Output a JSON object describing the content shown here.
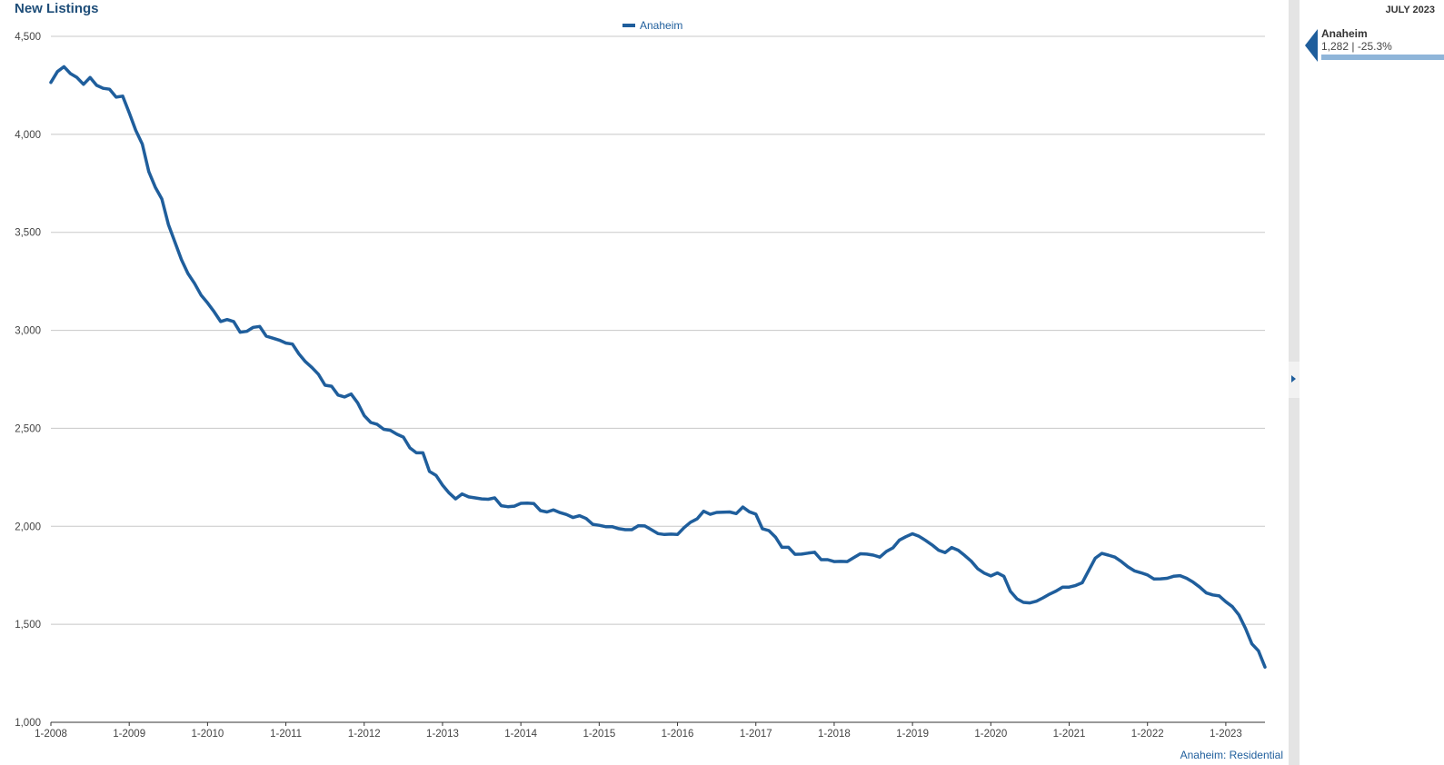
{
  "title": "New Listings",
  "source_label": "Anaheim: Residential",
  "side_panel": {
    "period": "JULY 2023",
    "item_name": "Anaheim",
    "item_values": "1,282 | -25.3%",
    "bar_fraction": 1.0
  },
  "colors": {
    "series": "#1f5e9c",
    "bar": "#8fb5d9",
    "title": "#1f4e79"
  },
  "chart_data": {
    "type": "line",
    "title": "New Listings",
    "ylim": [
      1000,
      4500
    ],
    "grid": true,
    "legend_position": "top-center",
    "y_ticks": [
      1000,
      1500,
      2000,
      2500,
      3000,
      3500,
      4000,
      4500
    ],
    "y_tick_labels": [
      "1,000",
      "1,500",
      "2,000",
      "2,500",
      "3,000",
      "3,500",
      "4,000",
      "4,500"
    ],
    "x_ticks": [
      "1-2008",
      "1-2009",
      "1-2010",
      "1-2011",
      "1-2012",
      "1-2013",
      "1-2014",
      "1-2015",
      "1-2016",
      "1-2017",
      "1-2018",
      "1-2019",
      "1-2020",
      "1-2021",
      "1-2022",
      "1-2023"
    ],
    "x_start": "1-2008",
    "series": [
      {
        "name": "Anaheim",
        "values": [
          4265,
          4320,
          4345,
          4310,
          4290,
          4255,
          4290,
          4250,
          4235,
          4230,
          4190,
          4195,
          4110,
          4020,
          3950,
          3810,
          3730,
          3670,
          3540,
          3450,
          3360,
          3290,
          3240,
          3180,
          3140,
          3095,
          3045,
          3055,
          3045,
          2990,
          2995,
          3015,
          3020,
          2970,
          2960,
          2950,
          2935,
          2930,
          2880,
          2840,
          2810,
          2775,
          2720,
          2715,
          2670,
          2660,
          2675,
          2630,
          2565,
          2530,
          2520,
          2495,
          2490,
          2470,
          2455,
          2400,
          2375,
          2375,
          2280,
          2260,
          2210,
          2170,
          2140,
          2165,
          2150,
          2145,
          2140,
          2138,
          2145,
          2105,
          2100,
          2103,
          2117,
          2118,
          2116,
          2080,
          2073,
          2084,
          2070,
          2060,
          2045,
          2054,
          2040,
          2010,
          2005,
          1998,
          1998,
          1988,
          1983,
          1983,
          2003,
          2002,
          1983,
          1963,
          1958,
          1960,
          1958,
          1993,
          2021,
          2038,
          2077,
          2061,
          2071,
          2072,
          2073,
          2065,
          2098,
          2074,
          2062,
          1988,
          1978,
          1945,
          1893,
          1893,
          1857,
          1858,
          1863,
          1868,
          1830,
          1830,
          1820,
          1821,
          1820,
          1840,
          1860,
          1858,
          1853,
          1843,
          1872,
          1890,
          1930,
          1947,
          1962,
          1949,
          1928,
          1905,
          1878,
          1866,
          1892,
          1878,
          1851,
          1822,
          1783,
          1761,
          1747,
          1762,
          1745,
          1668,
          1630,
          1612,
          1609,
          1618,
          1635,
          1654,
          1670,
          1690,
          1690,
          1698,
          1712,
          1775,
          1837,
          1862,
          1853,
          1843,
          1820,
          1793,
          1773,
          1763,
          1752,
          1731,
          1732,
          1735,
          1745,
          1748,
          1735,
          1715,
          1690,
          1660,
          1650,
          1645,
          1615,
          1590,
          1548,
          1480,
          1400,
          1365,
          1282
        ]
      }
    ]
  }
}
